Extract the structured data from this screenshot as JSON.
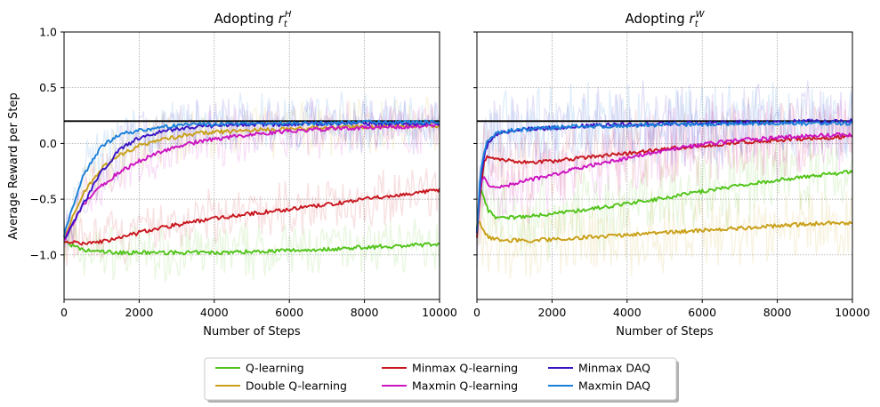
{
  "figure": {
    "ylabel": "Average Reward per Step",
    "xlabel": "Number of Steps"
  },
  "chart_data": [
    {
      "type": "line",
      "title": "Adopting r_t^H",
      "title_main": "Adopting ",
      "title_symbol": "r",
      "title_sub": "t",
      "title_sup": "H",
      "xlabel": "Number of Steps",
      "ylabel": "Average Reward per Step",
      "xlim": [
        0,
        10000
      ],
      "ylim": [
        -1.4,
        1.0
      ],
      "xticks": [
        0,
        2000,
        4000,
        6000,
        8000,
        10000
      ],
      "yticks": [
        -1.0,
        -0.5,
        0.0,
        0.5,
        1.0
      ],
      "ytick_labels": [
        "−1.0",
        "−0.5",
        "0.0",
        "0.5",
        "1.0"
      ],
      "grid": true,
      "reference_line": 0.2,
      "x": [
        0,
        500,
        1000,
        1500,
        2000,
        2500,
        3000,
        3500,
        4000,
        5000,
        6000,
        7000,
        8000,
        9000,
        10000
      ],
      "series": [
        {
          "name": "Q-learning",
          "values": [
            -0.88,
            -0.96,
            -0.97,
            -0.98,
            -0.98,
            -0.98,
            -0.98,
            -0.98,
            -0.98,
            -0.97,
            -0.96,
            -0.95,
            -0.93,
            -0.92,
            -0.9
          ]
        },
        {
          "name": "Double Q-learning",
          "values": [
            -0.85,
            -0.45,
            -0.22,
            -0.1,
            -0.02,
            0.03,
            0.06,
            0.09,
            0.1,
            0.12,
            0.13,
            0.14,
            0.15,
            0.16,
            0.16
          ]
        },
        {
          "name": "Minmax Q-learning",
          "values": [
            -0.88,
            -0.9,
            -0.88,
            -0.85,
            -0.8,
            -0.76,
            -0.73,
            -0.7,
            -0.67,
            -0.63,
            -0.59,
            -0.55,
            -0.5,
            -0.46,
            -0.42
          ]
        },
        {
          "name": "Maxmin Q-learning",
          "values": [
            -0.87,
            -0.55,
            -0.38,
            -0.25,
            -0.16,
            -0.08,
            -0.03,
            0.01,
            0.04,
            0.08,
            0.11,
            0.13,
            0.14,
            0.15,
            0.16
          ]
        },
        {
          "name": "Minmax DAQ",
          "values": [
            -0.86,
            -0.55,
            -0.25,
            -0.05,
            0.05,
            0.1,
            0.13,
            0.15,
            0.16,
            0.17,
            0.17,
            0.18,
            0.18,
            0.18,
            0.18
          ]
        },
        {
          "name": "Maxmin DAQ",
          "values": [
            -0.82,
            -0.3,
            -0.02,
            0.08,
            0.12,
            0.14,
            0.16,
            0.17,
            0.17,
            0.18,
            0.18,
            0.18,
            0.19,
            0.19,
            0.19
          ]
        }
      ]
    },
    {
      "type": "line",
      "title": "Adopting r_t^W",
      "title_main": "Adopting ",
      "title_symbol": "r",
      "title_sub": "t",
      "title_sup": "W",
      "xlabel": "Number of Steps",
      "ylabel": "",
      "xlim": [
        0,
        10000
      ],
      "ylim": [
        -1.4,
        1.0
      ],
      "xticks": [
        0,
        2000,
        4000,
        6000,
        8000,
        10000
      ],
      "yticks": [
        -1.0,
        -0.5,
        0.0,
        0.5,
        1.0
      ],
      "grid": true,
      "reference_line": 0.2,
      "x": [
        0,
        100,
        200,
        300,
        500,
        800,
        1000,
        1500,
        2000,
        2500,
        3000,
        4000,
        5000,
        6000,
        7000,
        8000,
        9000,
        10000
      ],
      "series": [
        {
          "name": "Q-learning",
          "values": [
            -0.75,
            -0.4,
            -0.5,
            -0.6,
            -0.66,
            -0.67,
            -0.66,
            -0.65,
            -0.63,
            -0.61,
            -0.59,
            -0.54,
            -0.49,
            -0.43,
            -0.38,
            -0.33,
            -0.29,
            -0.25
          ]
        },
        {
          "name": "Double Q-learning",
          "values": [
            -0.7,
            -0.72,
            -0.8,
            -0.84,
            -0.86,
            -0.87,
            -0.87,
            -0.87,
            -0.86,
            -0.85,
            -0.84,
            -0.82,
            -0.8,
            -0.78,
            -0.76,
            -0.74,
            -0.72,
            -0.71
          ]
        },
        {
          "name": "Minmax Q-learning",
          "values": [
            -0.85,
            -0.4,
            -0.15,
            -0.12,
            -0.13,
            -0.15,
            -0.16,
            -0.17,
            -0.16,
            -0.14,
            -0.12,
            -0.09,
            -0.05,
            -0.02,
            0.01,
            0.03,
            0.05,
            0.06
          ]
        },
        {
          "name": "Maxmin Q-learning",
          "values": [
            -0.8,
            -0.35,
            -0.3,
            -0.38,
            -0.4,
            -0.38,
            -0.36,
            -0.32,
            -0.28,
            -0.24,
            -0.2,
            -0.13,
            -0.06,
            -0.01,
            0.03,
            0.05,
            0.07,
            0.08
          ]
        },
        {
          "name": "Minmax DAQ",
          "values": [
            -0.82,
            -0.3,
            -0.1,
            0.0,
            0.08,
            0.11,
            0.12,
            0.13,
            0.14,
            0.15,
            0.16,
            0.17,
            0.18,
            0.18,
            0.19,
            0.19,
            0.2,
            0.2
          ]
        },
        {
          "name": "Maxmin DAQ",
          "values": [
            -0.78,
            -0.25,
            -0.05,
            0.03,
            0.09,
            0.11,
            0.12,
            0.13,
            0.14,
            0.15,
            0.15,
            0.16,
            0.17,
            0.17,
            0.18,
            0.18,
            0.18,
            0.18
          ]
        }
      ]
    }
  ],
  "legend": {
    "placement": "bottom-center",
    "entries": [
      {
        "label": "Q-learning",
        "color": "#52c41a"
      },
      {
        "label": "Double Q-learning",
        "color": "#c9a018"
      },
      {
        "label": "Minmax Q-learning",
        "color": "#c8161e"
      },
      {
        "label": "Maxmin Q-learning",
        "color": "#cc14c0"
      },
      {
        "label": "Minmax DAQ",
        "color": "#3a14c4"
      },
      {
        "label": "Maxmin DAQ",
        "color": "#1a7fd8"
      }
    ]
  },
  "colors": {
    "Q-learning": "#52c41a",
    "Double Q-learning": "#c9a018",
    "Minmax Q-learning": "#c8161e",
    "Maxmin Q-learning": "#cc14c0",
    "Minmax DAQ": "#3a14c4",
    "Maxmin DAQ": "#1a7fd8",
    "reference_line": "#000000"
  }
}
